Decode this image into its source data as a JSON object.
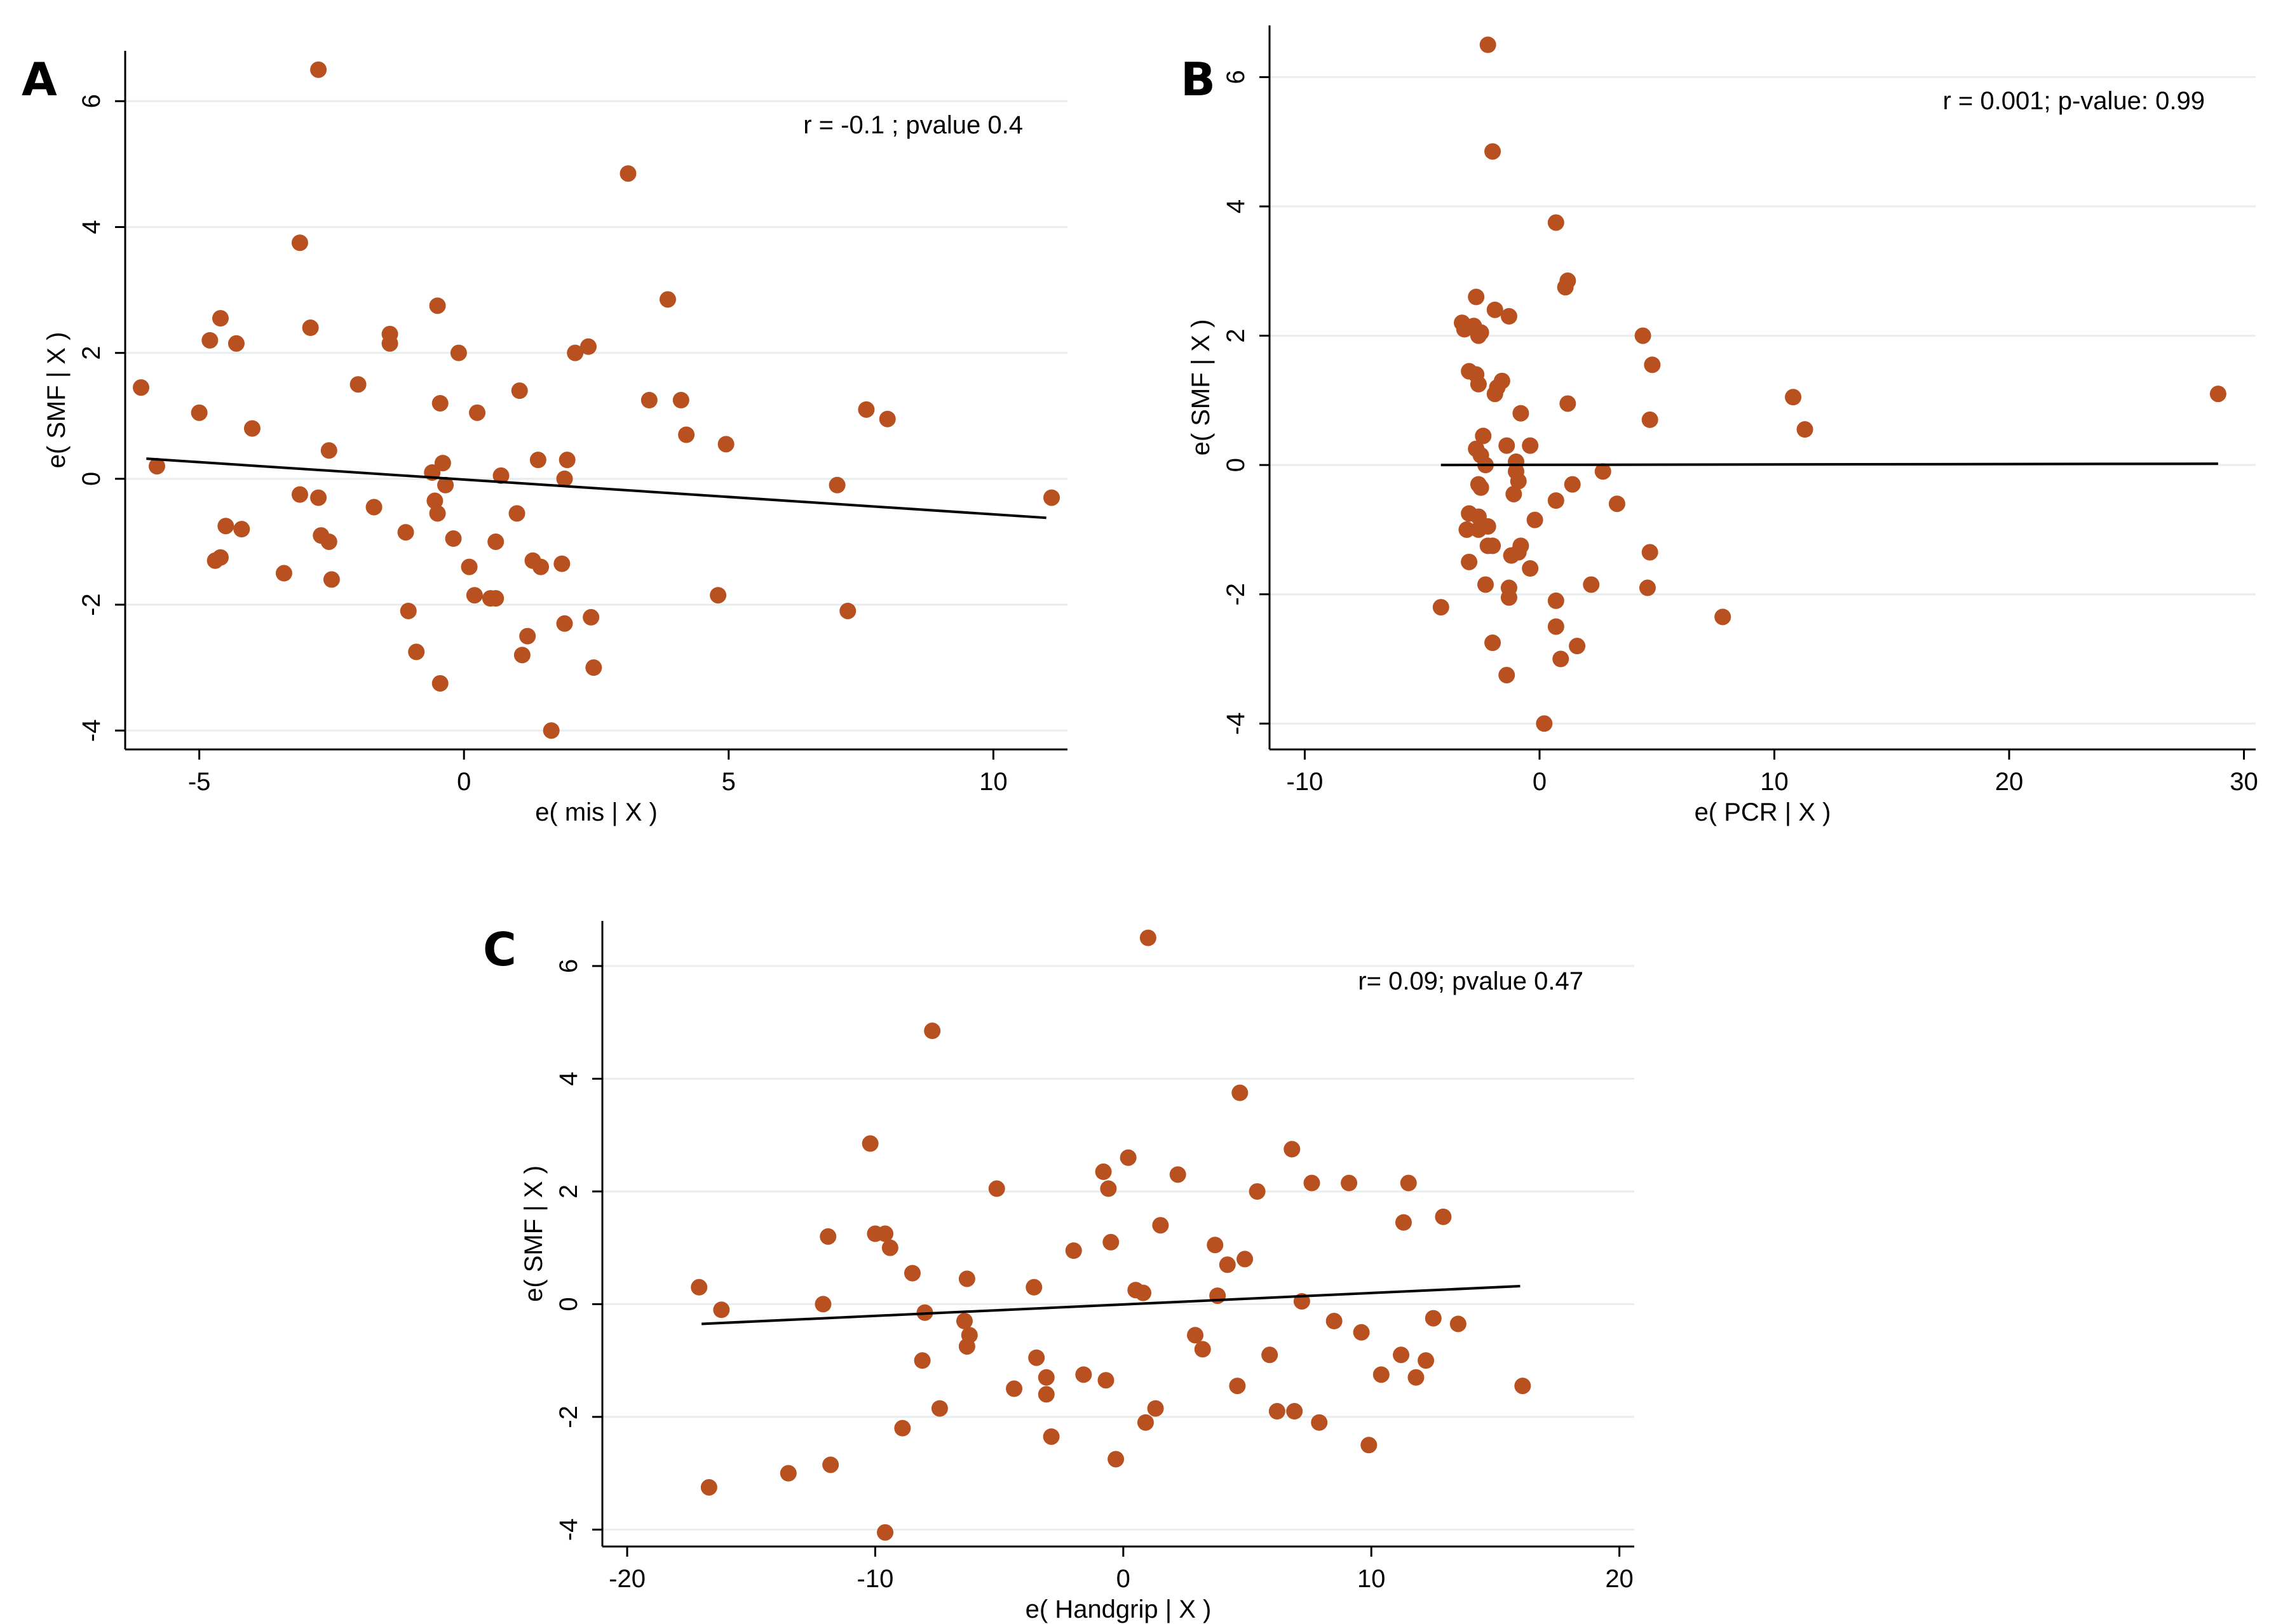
{
  "figure": {
    "background": "#ffffff",
    "point_color": "#b8501f",
    "line_color": "#000000",
    "grid_color": "#e8eeee"
  },
  "chart_data": [
    {
      "panel": "A",
      "type": "scatter",
      "xlabel": "e( mis | X )",
      "ylabel": "e( SMF | X )",
      "annotation": "r = -0.1 ; pvalue 0.4",
      "xlim": [
        -6.4,
        11.4
      ],
      "ylim": [
        -4.3,
        6.8
      ],
      "xticks": [
        -5,
        0,
        5,
        10
      ],
      "xtick_labels": [
        "-5",
        "0",
        "5",
        "10"
      ],
      "yticks": [
        -4,
        -2,
        0,
        2,
        4,
        6
      ],
      "ytick_labels": [
        "-4",
        "-2",
        "0",
        "2",
        "4",
        "6"
      ],
      "fit_line": {
        "x": [
          -6.0,
          11.0
        ],
        "y": [
          0.32,
          -0.62
        ]
      },
      "points": [
        [
          -6.1,
          1.45
        ],
        [
          -5.8,
          0.2
        ],
        [
          -5.0,
          1.05
        ],
        [
          -4.8,
          2.2
        ],
        [
          -4.6,
          2.55
        ],
        [
          -4.6,
          -1.25
        ],
        [
          -4.5,
          -0.75
        ],
        [
          -4.7,
          -1.3
        ],
        [
          -4.3,
          2.15
        ],
        [
          -4.2,
          -0.8
        ],
        [
          -4.0,
          0.8
        ],
        [
          -3.4,
          -1.5
        ],
        [
          -3.1,
          3.75
        ],
        [
          -3.1,
          -0.25
        ],
        [
          -2.9,
          2.4
        ],
        [
          -2.75,
          6.5
        ],
        [
          -2.75,
          -0.3
        ],
        [
          -2.7,
          -0.9
        ],
        [
          -2.55,
          -1.0
        ],
        [
          -2.5,
          -1.6
        ],
        [
          -2.55,
          0.45
        ],
        [
          -2.0,
          1.5
        ],
        [
          -1.7,
          -0.45
        ],
        [
          -1.4,
          2.3
        ],
        [
          -1.4,
          2.15
        ],
        [
          -1.1,
          -0.85
        ],
        [
          -1.05,
          -2.1
        ],
        [
          -0.9,
          -2.75
        ],
        [
          -0.6,
          0.1
        ],
        [
          -0.55,
          -0.35
        ],
        [
          -0.5,
          2.75
        ],
        [
          -0.5,
          -0.55
        ],
        [
          -0.45,
          1.2
        ],
        [
          -0.4,
          0.25
        ],
        [
          -0.35,
          -0.1
        ],
        [
          -0.45,
          -3.25
        ],
        [
          -0.2,
          -0.95
        ],
        [
          -0.1,
          2.0
        ],
        [
          0.1,
          -1.4
        ],
        [
          0.2,
          -1.85
        ],
        [
          0.25,
          1.05
        ],
        [
          0.5,
          -1.9
        ],
        [
          0.6,
          -1.9
        ],
        [
          0.6,
          -1.0
        ],
        [
          0.7,
          0.05
        ],
        [
          1.0,
          -0.55
        ],
        [
          1.05,
          1.4
        ],
        [
          1.1,
          -2.8
        ],
        [
          1.2,
          -2.5
        ],
        [
          1.3,
          -1.3
        ],
        [
          1.4,
          0.3
        ],
        [
          1.45,
          -1.4
        ],
        [
          1.65,
          -4.0
        ],
        [
          1.85,
          -1.35
        ],
        [
          1.9,
          0.0
        ],
        [
          1.9,
          -2.3
        ],
        [
          1.95,
          0.3
        ],
        [
          2.1,
          2.0
        ],
        [
          2.35,
          2.1
        ],
        [
          2.4,
          -2.2
        ],
        [
          2.45,
          -3.0
        ],
        [
          3.1,
          4.85
        ],
        [
          3.5,
          1.25
        ],
        [
          3.85,
          2.85
        ],
        [
          4.1,
          1.25
        ],
        [
          4.2,
          0.7
        ],
        [
          4.8,
          -1.85
        ],
        [
          4.95,
          0.55
        ],
        [
          7.05,
          -0.1
        ],
        [
          7.25,
          -2.1
        ],
        [
          7.6,
          1.1
        ],
        [
          8.0,
          0.95
        ],
        [
          11.1,
          -0.3
        ]
      ]
    },
    {
      "panel": "B",
      "type": "scatter",
      "xlabel": "e( PCR | X )",
      "ylabel": "e( SMF | X )",
      "annotation": "r = 0.001; p-value: 0.99",
      "xlim": [
        -11.5,
        30.5
      ],
      "ylim": [
        -4.4,
        6.8
      ],
      "xticks": [
        -10,
        0,
        10,
        20,
        30
      ],
      "xtick_labels": [
        "-10",
        "0",
        "10",
        "20",
        "30"
      ],
      "yticks": [
        -4,
        -2,
        0,
        2,
        4,
        6
      ],
      "ytick_labels": [
        "-4",
        "-2",
        "0",
        "2",
        "4",
        "6"
      ],
      "fit_line": {
        "x": [
          -4.2,
          28.9
        ],
        "y": [
          0.0,
          0.02
        ]
      },
      "points": [
        [
          -2.2,
          6.5
        ],
        [
          -2.0,
          4.85
        ],
        [
          0.7,
          3.75
        ],
        [
          1.2,
          2.85
        ],
        [
          1.1,
          2.75
        ],
        [
          -2.7,
          2.6
        ],
        [
          -1.9,
          2.4
        ],
        [
          -1.3,
          2.3
        ],
        [
          -3.3,
          2.2
        ],
        [
          -2.8,
          2.15
        ],
        [
          -3.2,
          2.1
        ],
        [
          -2.5,
          2.05
        ],
        [
          -2.6,
          2.0
        ],
        [
          4.4,
          2.0
        ],
        [
          4.8,
          1.55
        ],
        [
          -3.0,
          1.45
        ],
        [
          -2.7,
          1.4
        ],
        [
          -2.6,
          1.25
        ],
        [
          -1.6,
          1.3
        ],
        [
          -1.8,
          1.2
        ],
        [
          -1.9,
          1.1
        ],
        [
          1.2,
          0.95
        ],
        [
          -0.8,
          0.8
        ],
        [
          10.8,
          1.05
        ],
        [
          11.3,
          0.55
        ],
        [
          28.9,
          1.1
        ],
        [
          4.7,
          0.7
        ],
        [
          -2.4,
          0.45
        ],
        [
          -1.4,
          0.3
        ],
        [
          -0.4,
          0.3
        ],
        [
          -2.7,
          0.25
        ],
        [
          -2.5,
          0.15
        ],
        [
          -2.3,
          0.0
        ],
        [
          -1.0,
          0.05
        ],
        [
          -1.0,
          -0.1
        ],
        [
          -0.9,
          -0.25
        ],
        [
          -2.6,
          -0.3
        ],
        [
          2.7,
          -0.1
        ],
        [
          1.4,
          -0.3
        ],
        [
          -2.5,
          -0.35
        ],
        [
          -1.1,
          -0.45
        ],
        [
          0.7,
          -0.55
        ],
        [
          3.3,
          -0.6
        ],
        [
          -3.0,
          -0.75
        ],
        [
          -2.6,
          -0.8
        ],
        [
          -2.2,
          -0.95
        ],
        [
          -2.6,
          -1.0
        ],
        [
          -3.1,
          -1.0
        ],
        [
          -0.2,
          -0.85
        ],
        [
          -2.0,
          -1.25
        ],
        [
          -2.2,
          -1.25
        ],
        [
          -0.8,
          -1.25
        ],
        [
          -0.9,
          -1.35
        ],
        [
          -1.2,
          -1.4
        ],
        [
          4.7,
          -1.35
        ],
        [
          -3.0,
          -1.5
        ],
        [
          -0.4,
          -1.6
        ],
        [
          -2.3,
          -1.85
        ],
        [
          -1.3,
          -1.9
        ],
        [
          2.2,
          -1.85
        ],
        [
          4.6,
          -1.9
        ],
        [
          -1.3,
          -2.05
        ],
        [
          0.7,
          -2.1
        ],
        [
          -4.2,
          -2.2
        ],
        [
          7.8,
          -2.35
        ],
        [
          0.7,
          -2.5
        ],
        [
          1.6,
          -2.8
        ],
        [
          -2.0,
          -2.75
        ],
        [
          0.9,
          -3.0
        ],
        [
          -1.4,
          -3.25
        ],
        [
          0.2,
          -4.0
        ]
      ]
    },
    {
      "panel": "C",
      "type": "scatter",
      "xlabel": "e( Handgrip | X )",
      "ylabel": "e( SMF | X )",
      "annotation": "r= 0.09; pvalue 0.47",
      "xlim": [
        -21.0,
        20.6
      ],
      "ylim": [
        -4.3,
        6.8
      ],
      "xticks": [
        -20,
        -10,
        0,
        10,
        20
      ],
      "xtick_labels": [
        "-20",
        "-10",
        "0",
        "10",
        "20"
      ],
      "yticks": [
        -4,
        -2,
        0,
        2,
        4,
        6
      ],
      "ytick_labels": [
        "-4",
        "-2",
        "0",
        "2",
        "4",
        "6"
      ],
      "fit_line": {
        "x": [
          -17.0,
          16.0
        ],
        "y": [
          -0.35,
          0.32
        ]
      },
      "points": [
        [
          -17.1,
          0.3
        ],
        [
          -16.7,
          -3.25
        ],
        [
          -16.2,
          -0.1
        ],
        [
          -13.5,
          -3.0
        ],
        [
          -12.1,
          0.0
        ],
        [
          -11.9,
          1.2
        ],
        [
          -11.8,
          -2.85
        ],
        [
          -10.2,
          2.85
        ],
        [
          -10.0,
          1.25
        ],
        [
          -9.6,
          1.25
        ],
        [
          -9.4,
          1.0
        ],
        [
          -9.6,
          -4.05
        ],
        [
          -8.9,
          -2.2
        ],
        [
          -8.5,
          0.55
        ],
        [
          -8.0,
          -0.15
        ],
        [
          -8.1,
          -1.0
        ],
        [
          -7.7,
          4.85
        ],
        [
          -7.4,
          -1.85
        ],
        [
          -6.3,
          0.45
        ],
        [
          -6.4,
          -0.3
        ],
        [
          -6.2,
          -0.55
        ],
        [
          -6.3,
          -0.75
        ],
        [
          -5.1,
          2.05
        ],
        [
          -4.4,
          -1.5
        ],
        [
          -3.6,
          0.3
        ],
        [
          -3.5,
          -0.95
        ],
        [
          -3.1,
          -1.3
        ],
        [
          -3.1,
          -1.6
        ],
        [
          -2.9,
          -2.35
        ],
        [
          -2.0,
          0.95
        ],
        [
          -1.6,
          -1.25
        ],
        [
          -0.8,
          2.35
        ],
        [
          -0.7,
          -1.35
        ],
        [
          -0.6,
          2.05
        ],
        [
          -0.5,
          1.1
        ],
        [
          -0.3,
          -2.75
        ],
        [
          0.2,
          2.6
        ],
        [
          0.5,
          0.25
        ],
        [
          0.8,
          0.2
        ],
        [
          0.9,
          -2.1
        ],
        [
          1.0,
          6.5
        ],
        [
          1.3,
          -1.85
        ],
        [
          1.5,
          1.4
        ],
        [
          2.2,
          2.3
        ],
        [
          2.9,
          -0.55
        ],
        [
          3.2,
          -0.8
        ],
        [
          3.7,
          1.05
        ],
        [
          3.8,
          0.15
        ],
        [
          4.2,
          0.7
        ],
        [
          4.6,
          -1.45
        ],
        [
          4.7,
          3.75
        ],
        [
          4.9,
          0.8
        ],
        [
          5.4,
          2.0
        ],
        [
          5.9,
          -0.9
        ],
        [
          6.2,
          -1.9
        ],
        [
          6.8,
          2.75
        ],
        [
          6.9,
          -1.9
        ],
        [
          7.2,
          0.05
        ],
        [
          7.6,
          2.15
        ],
        [
          7.9,
          -2.1
        ],
        [
          8.5,
          -0.3
        ],
        [
          9.1,
          2.15
        ],
        [
          9.6,
          -0.5
        ],
        [
          9.9,
          -2.5
        ],
        [
          10.4,
          -1.25
        ],
        [
          11.2,
          -0.9
        ],
        [
          11.3,
          1.45
        ],
        [
          11.5,
          2.15
        ],
        [
          11.8,
          -1.3
        ],
        [
          12.2,
          -1.0
        ],
        [
          12.5,
          -0.25
        ],
        [
          12.9,
          1.55
        ],
        [
          13.5,
          -0.35
        ],
        [
          16.1,
          -1.45
        ]
      ]
    }
  ]
}
